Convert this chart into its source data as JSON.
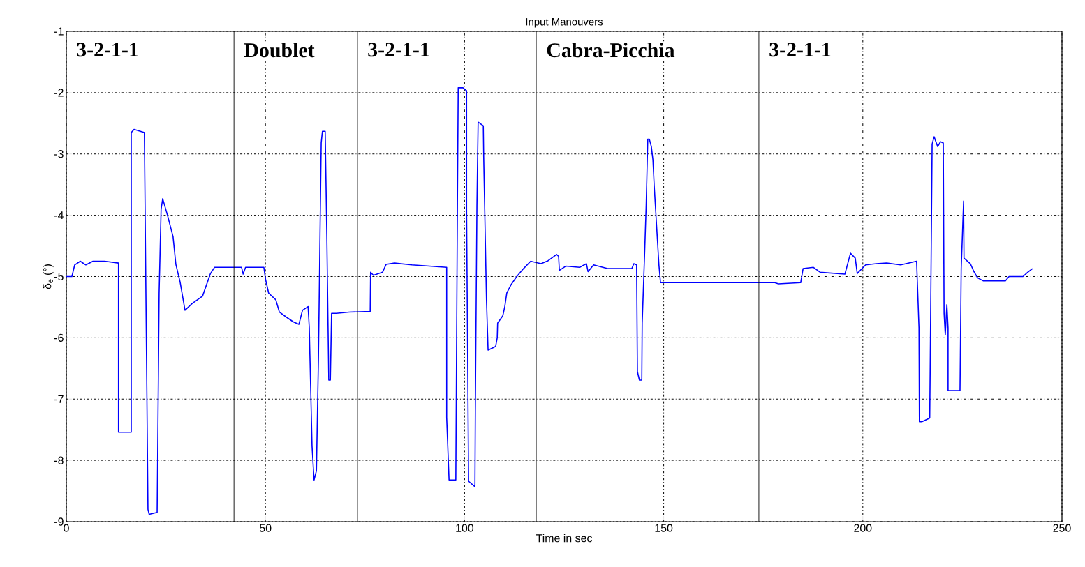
{
  "chart_data": {
    "type": "line",
    "title": "Input Manouvers",
    "xlabel": "Time in sec",
    "ylabel": "δ$_{e}$ (°)",
    "xlim": [
      0,
      250
    ],
    "ylim": [
      -9,
      -1
    ],
    "xticks": [
      0,
      50,
      100,
      150,
      200,
      250
    ],
    "yticks": [
      -9,
      -8,
      -7,
      -6,
      -5,
      -4,
      -3,
      -2,
      -1
    ],
    "grid": true,
    "x": [
      0,
      1.4,
      2.1,
      3.5,
      4.9,
      6.7,
      9.6,
      13.1,
      13.1,
      16.3,
      16.3,
      17.0,
      19.6,
      20.5,
      20.8,
      22.8,
      23.3,
      23.8,
      24.2,
      25.4,
      26.8,
      27.5,
      28.6,
      29.8,
      31.6,
      34.2,
      36.2,
      37.2,
      44.0,
      44.4,
      45.0,
      49.6,
      50.0,
      50.8,
      52.6,
      53.5,
      55.2,
      57.0,
      58.4,
      59.3,
      60.7,
      61.0,
      61.7,
      62.2,
      62.8,
      63.3,
      63.7,
      64.0,
      64.3,
      65.0,
      65.4,
      65.9,
      66.3,
      66.6,
      67.8,
      71.0,
      76.3,
      76.4,
      77.1,
      79.4,
      80.3,
      82.4,
      86.8,
      95.5,
      95.5,
      96.1,
      97.8,
      98.2,
      98.4,
      99.6,
      100.5,
      100.5,
      101.0,
      102.6,
      102.7,
      103.1,
      103.4,
      104.7,
      104.8,
      105.5,
      105.9,
      107.8,
      108.2,
      108.3,
      109.6,
      110.1,
      110.6,
      111.7,
      113.1,
      114.8,
      116.6,
      119.2,
      121.0,
      123.1,
      123.6,
      123.8,
      125.4,
      128.9,
      130.6,
      131.0,
      132.4,
      135.9,
      142.0,
      142.5,
      143.2,
      143.4,
      143.9,
      144.5,
      144.6,
      145.2,
      145.6,
      146.0,
      146.4,
      146.9,
      147.3,
      147.6,
      148.8,
      149.2,
      177.9,
      178.8,
      184.4,
      185.0,
      187.6,
      189.3,
      195.5,
      196.9,
      198.1,
      198.6,
      200.7,
      203.4,
      206.0,
      209.5,
      213.5,
      214.1,
      214.2,
      214.8,
      216.8,
      217.0,
      217.4,
      217.9,
      218.8,
      219.5,
      220.2,
      220.4,
      220.7,
      221.1,
      221.4,
      221.4,
      224.4,
      224.7,
      225.3,
      225.4,
      227.0,
      227.9,
      228.8,
      230.2,
      235.8,
      236.7,
      240.2,
      241.4,
      242.6
    ],
    "values": [
      -5.0,
      -5.0,
      -4.81,
      -4.75,
      -4.81,
      -4.75,
      -4.75,
      -4.78,
      -7.54,
      -7.54,
      -2.65,
      -2.6,
      -2.65,
      -8.8,
      -8.88,
      -8.85,
      -5.27,
      -3.9,
      -3.73,
      -4.0,
      -4.35,
      -4.8,
      -5.1,
      -5.55,
      -5.44,
      -5.32,
      -4.95,
      -4.85,
      -4.85,
      -4.96,
      -4.85,
      -4.85,
      -5.04,
      -5.27,
      -5.38,
      -5.58,
      -5.66,
      -5.74,
      -5.78,
      -5.55,
      -5.49,
      -5.83,
      -7.77,
      -8.32,
      -8.17,
      -6.35,
      -4.3,
      -2.82,
      -2.63,
      -2.63,
      -4.3,
      -6.69,
      -6.69,
      -5.6,
      -5.6,
      -5.58,
      -5.57,
      -4.93,
      -4.98,
      -4.93,
      -4.8,
      -4.78,
      -4.81,
      -4.85,
      -7.3,
      -8.32,
      -8.32,
      -3.8,
      -1.92,
      -1.92,
      -1.97,
      -3.9,
      -8.34,
      -8.43,
      -7.2,
      -3.84,
      -2.48,
      -2.54,
      -3.05,
      -5.38,
      -6.2,
      -6.14,
      -6.0,
      -5.76,
      -5.64,
      -5.49,
      -5.27,
      -5.13,
      -5.0,
      -4.87,
      -4.75,
      -4.79,
      -4.74,
      -4.64,
      -4.67,
      -4.9,
      -4.83,
      -4.85,
      -4.79,
      -4.92,
      -4.81,
      -4.87,
      -4.87,
      -4.79,
      -4.81,
      -6.55,
      -6.69,
      -6.69,
      -5.76,
      -4.64,
      -3.84,
      -2.76,
      -2.76,
      -2.88,
      -3.1,
      -3.5,
      -4.81,
      -5.1,
      -5.1,
      -5.12,
      -5.1,
      -4.87,
      -4.85,
      -4.93,
      -4.96,
      -4.62,
      -4.7,
      -4.95,
      -4.81,
      -4.79,
      -4.78,
      -4.81,
      -4.75,
      -5.84,
      -7.37,
      -7.37,
      -7.31,
      -5.84,
      -2.84,
      -2.72,
      -2.88,
      -2.8,
      -2.82,
      -5.6,
      -5.95,
      -5.46,
      -5.84,
      -6.86,
      -6.86,
      -4.87,
      -3.77,
      -4.7,
      -4.79,
      -4.92,
      -5.02,
      -5.07,
      -5.07,
      -5.0,
      -5.0,
      -4.93,
      -4.87
    ],
    "color": "#0000ff",
    "marker": "none",
    "line_style": "solid",
    "ref_lines": [
      {
        "axis": "x",
        "value": 42.1,
        "color": "#000000"
      },
      {
        "axis": "x",
        "value": 73.1,
        "color": "#000000"
      },
      {
        "axis": "x",
        "value": 118,
        "color": "#000000"
      },
      {
        "axis": "x",
        "value": 173.9,
        "color": "#000000"
      }
    ],
    "annotations": [
      "3-2-1-1",
      "Doublet",
      "3-2-1-1",
      "Cabra-Picchia",
      "3-2-1-1"
    ]
  }
}
